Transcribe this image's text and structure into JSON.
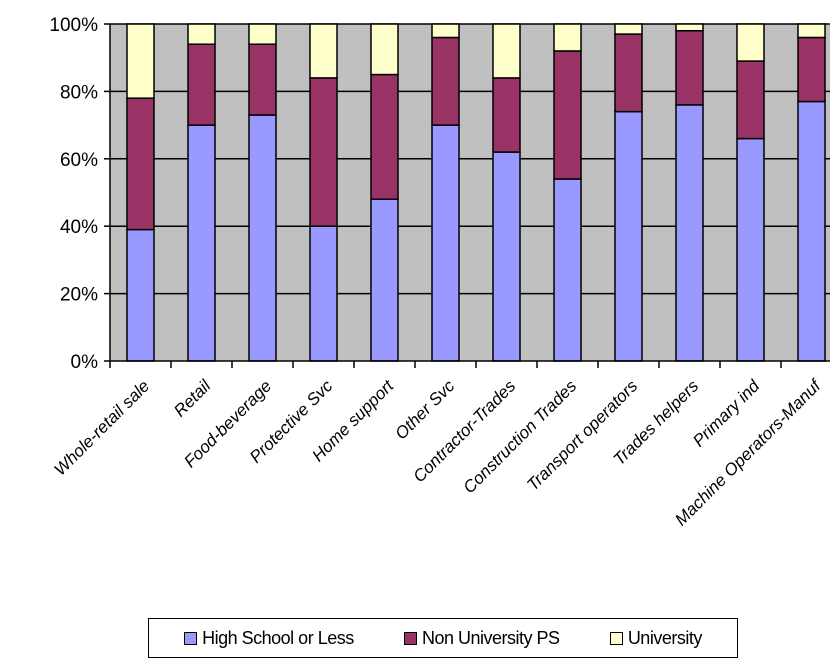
{
  "chart_data": {
    "type": "bar",
    "stacked": true,
    "percent": true,
    "categories": [
      "Whole-retail sale",
      "Retail",
      "Food-beverage",
      "Protective Svc",
      "Home support",
      "Other Svc",
      "Contractor-Trades",
      "Construction Trades",
      "Transport operators",
      "Trades helpers",
      "Primary ind",
      "Machine Operators-Manuf"
    ],
    "series": [
      {
        "name": "High School or Less",
        "color": "#9999ff",
        "values": [
          39,
          70,
          73,
          40,
          48,
          70,
          62,
          54,
          74,
          76,
          66,
          77
        ]
      },
      {
        "name": "Non University PS",
        "color": "#993366",
        "values": [
          39,
          24,
          21,
          44,
          37,
          26,
          22,
          38,
          23,
          22,
          23,
          19
        ]
      },
      {
        "name": "University",
        "color": "#ffffcc",
        "values": [
          22,
          6,
          6,
          16,
          15,
          4,
          16,
          8,
          3,
          2,
          11,
          4
        ]
      }
    ],
    "yticks": [
      "0%",
      "20%",
      "40%",
      "60%",
      "80%",
      "100%"
    ],
    "ylim": [
      0,
      100
    ],
    "grid": true,
    "plot_background": "#c0c0c0",
    "legend_position": "bottom"
  }
}
